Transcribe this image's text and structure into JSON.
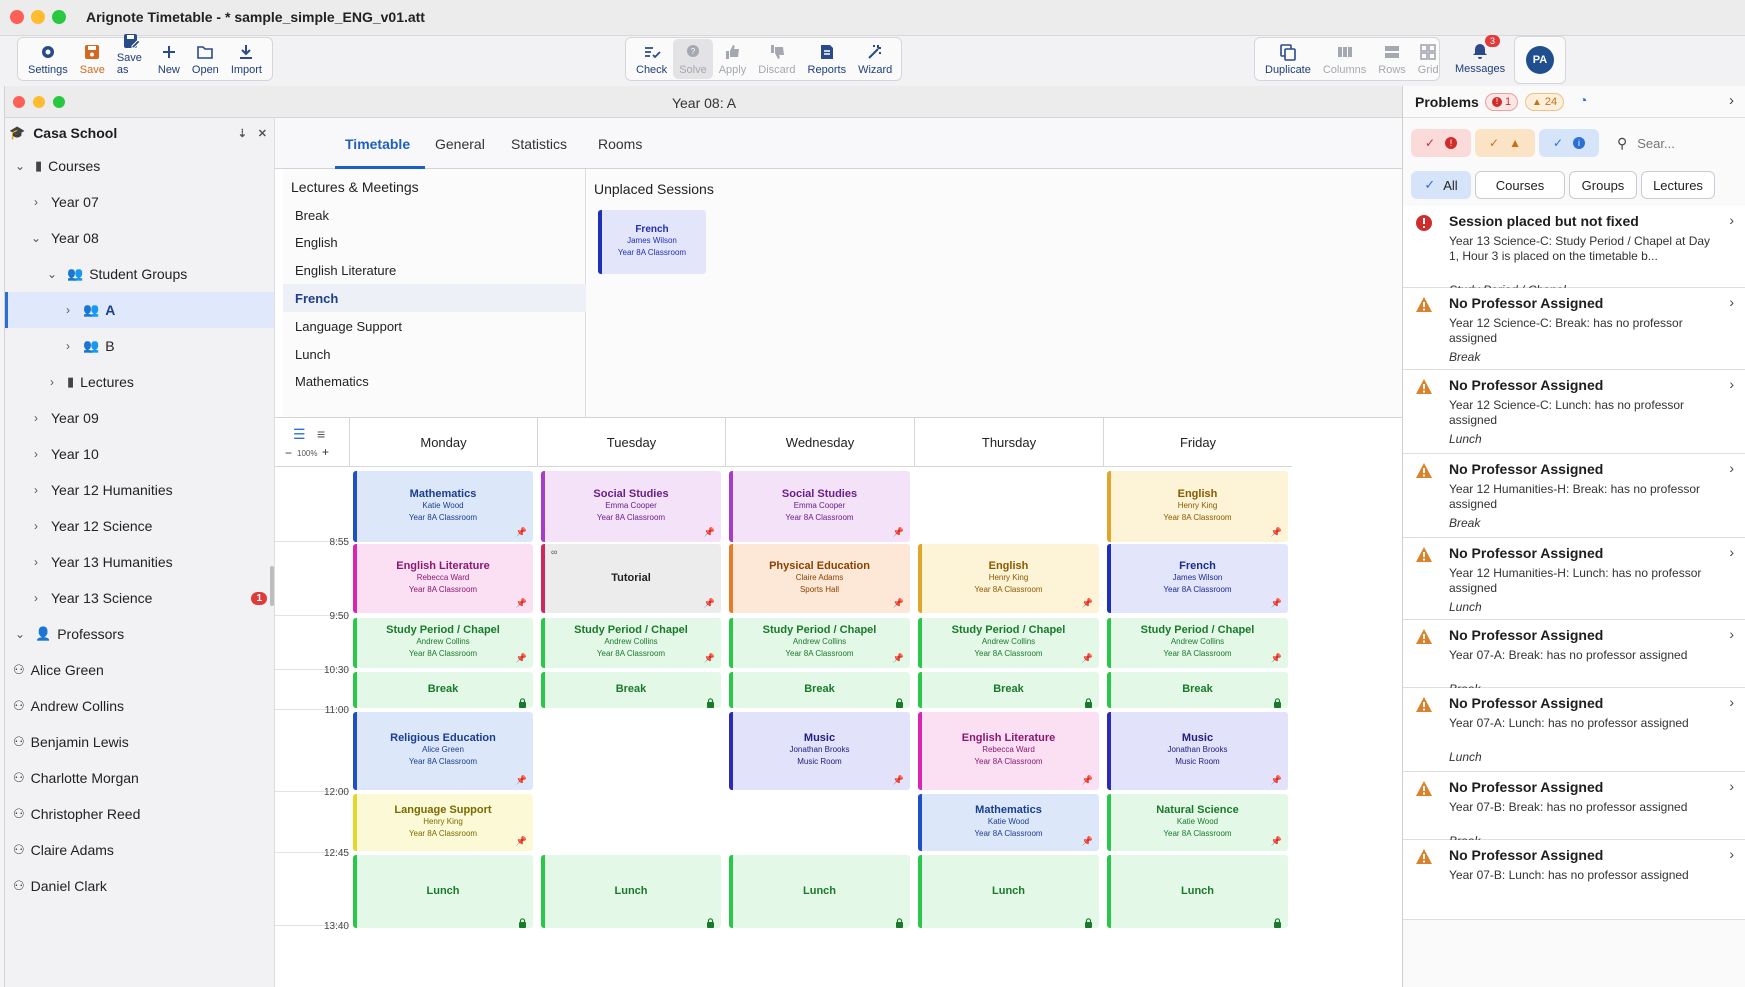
{
  "app": {
    "title": "Arignote Timetable - * sample_simple_ENG_v01.att",
    "window_title": "Year 08: A"
  },
  "toolbar": {
    "left": [
      {
        "label": "Settings",
        "icon": "gear-icon"
      },
      {
        "label": "Save",
        "icon": "save-icon"
      },
      {
        "label": "Save as",
        "icon": "save-as-icon"
      },
      {
        "label": "New",
        "icon": "plus-icon"
      },
      {
        "label": "Open",
        "icon": "folder-icon"
      },
      {
        "label": "Import",
        "icon": "download-icon"
      }
    ],
    "center": [
      {
        "label": "Check",
        "icon": "check-icon"
      },
      {
        "label": "Solve",
        "icon": "solve-icon"
      },
      {
        "label": "Apply",
        "icon": "thumbs-up-icon"
      },
      {
        "label": "Discard",
        "icon": "thumbs-down-icon"
      },
      {
        "label": "Reports",
        "icon": "reports-icon"
      },
      {
        "label": "Wizard",
        "icon": "wizard-icon"
      }
    ],
    "right": [
      {
        "label": "Duplicate",
        "icon": "duplicate-icon"
      },
      {
        "label": "Columns",
        "icon": "columns-icon"
      },
      {
        "label": "Rows",
        "icon": "rows-icon"
      },
      {
        "label": "Grid",
        "icon": "grid-icon"
      }
    ],
    "messages": {
      "label": "Messages",
      "count": "3"
    },
    "avatar": "PA"
  },
  "sidebar": {
    "school": "Casa School",
    "rows": [
      {
        "label": "Courses",
        "level": 0,
        "chev": "down",
        "icon": "book-icon"
      },
      {
        "label": "Year 07",
        "level": 1,
        "chev": "right"
      },
      {
        "label": "Year 08",
        "level": 1,
        "chev": "down"
      },
      {
        "label": "Student Groups",
        "level": 2,
        "chev": "down",
        "icon": "group-icon"
      },
      {
        "label": "A",
        "level": 3,
        "chev": "right",
        "icon": "group-icon",
        "selected": true
      },
      {
        "label": "B",
        "level": 3,
        "chev": "right",
        "icon": "group-icon"
      },
      {
        "label": "Lectures",
        "level": 2,
        "chev": "right",
        "icon": "book-icon"
      },
      {
        "label": "Year 09",
        "level": 1,
        "chev": "right"
      },
      {
        "label": "Year 10",
        "level": 1,
        "chev": "right"
      },
      {
        "label": "Year 12 Humanities",
        "level": 1,
        "chev": "right"
      },
      {
        "label": "Year 12 Science",
        "level": 1,
        "chev": "right"
      },
      {
        "label": "Year 13 Humanities",
        "level": 1,
        "chev": "right"
      },
      {
        "label": "Year 13 Science",
        "level": 1,
        "chev": "right",
        "badge": "1"
      },
      {
        "label": "Professors",
        "level": 0,
        "chev": "down",
        "icon": "person-icon"
      },
      {
        "label": "Alice Green",
        "level": 0,
        "icon": "person-outline-icon"
      },
      {
        "label": "Andrew Collins",
        "level": 0,
        "icon": "person-outline-icon"
      },
      {
        "label": "Benjamin Lewis",
        "level": 0,
        "icon": "person-outline-icon"
      },
      {
        "label": "Charlotte Morgan",
        "level": 0,
        "icon": "person-outline-icon"
      },
      {
        "label": "Christopher Reed",
        "level": 0,
        "icon": "person-outline-icon"
      },
      {
        "label": "Claire Adams",
        "level": 0,
        "icon": "person-outline-icon"
      },
      {
        "label": "Daniel Clark",
        "level": 0,
        "icon": "person-outline-icon"
      }
    ]
  },
  "tabs": [
    "Timetable",
    "General",
    "Statistics",
    "Rooms"
  ],
  "lectures": {
    "title": "Lectures & Meetings",
    "items": [
      "Break",
      "English",
      "English Literature",
      "French",
      "Language Support",
      "Lunch",
      "Mathematics"
    ],
    "selected": "French"
  },
  "unplaced": {
    "title": "Unplaced Sessions",
    "cards": [
      {
        "subject": "French",
        "prof": "James Wilson",
        "room": "Year 8A Classroom",
        "color": "#1f2fb8",
        "bg": "#e3e6fb"
      }
    ]
  },
  "grid": {
    "zoom": "100%",
    "days": [
      "Monday",
      "Tuesday",
      "Wednesday",
      "Thursday",
      "Friday"
    ],
    "times": [
      "8:55",
      "9:50",
      "10:30",
      "11:00",
      "12:00",
      "12:45",
      "13:40"
    ],
    "palette": {
      "math": {
        "bar": "#1f4fc4",
        "bg": "#dce8fa",
        "fg": "#1a3d8f"
      },
      "social": {
        "bar": "#a63cc7",
        "bg": "#f3e2f8",
        "fg": "#6a1f8a"
      },
      "english": {
        "bar": "#e0a52b",
        "bg": "#fdf3d6",
        "fg": "#8a5a00"
      },
      "englit": {
        "bar": "#d826b0",
        "bg": "#fbe0f3",
        "fg": "#8a1772"
      },
      "tutorial": {
        "bar": "#d0285a",
        "bg": "#ececec",
        "fg": "#222222"
      },
      "pe": {
        "bar": "#e67b2a",
        "bg": "#fde7d6",
        "fg": "#8a4200"
      },
      "french": {
        "bar": "#1f2fb8",
        "bg": "#e3e6fb",
        "fg": "#1a2a8f"
      },
      "study": {
        "bar": "#2bc74a",
        "bg": "#e3f8e6",
        "fg": "#1a7a2c"
      },
      "break": {
        "bar": "#2bc74a",
        "bg": "#e3f8e6",
        "fg": "#1a7a2c"
      },
      "religious": {
        "bar": "#1f4fc4",
        "bg": "#dce8fa",
        "fg": "#1a3d8f"
      },
      "music": {
        "bar": "#2d2ab5",
        "bg": "#e2e2fa",
        "fg": "#222080"
      },
      "lang": {
        "bar": "#e6d52b",
        "bg": "#fcf9d6",
        "fg": "#7a6a00"
      },
      "natsci": {
        "bar": "#2bc74a",
        "bg": "#e3f8e6",
        "fg": "#1a7a2c"
      },
      "lunch": {
        "bar": "#2bc74a",
        "bg": "#e3f8e6",
        "fg": "#1a7a2c"
      }
    },
    "cards": [
      {
        "day": 0,
        "row": 0,
        "subject": "Mathematics",
        "prof": "Katie Wood",
        "room": "Year 8A Classroom",
        "style": "math",
        "marker": "pin"
      },
      {
        "day": 1,
        "row": 0,
        "subject": "Social Studies",
        "prof": "Emma Cooper",
        "room": "Year 8A Classroom",
        "style": "social",
        "marker": "pin"
      },
      {
        "day": 2,
        "row": 0,
        "subject": "Social Studies",
        "prof": "Emma Cooper",
        "room": "Year 8A Classroom",
        "style": "social",
        "marker": "pin"
      },
      {
        "day": 4,
        "row": 0,
        "subject": "English",
        "prof": "Henry King",
        "room": "Year 8A Classroom",
        "style": "english",
        "marker": "pin"
      },
      {
        "day": 0,
        "row": 1,
        "subject": "English Literature",
        "prof": "Rebecca Ward",
        "room": "Year 8A Classroom",
        "style": "englit",
        "marker": "pin"
      },
      {
        "day": 1,
        "row": 1,
        "subject": "Tutorial",
        "prof": "",
        "room": "",
        "style": "tutorial",
        "marker": "pin",
        "linked": true
      },
      {
        "day": 2,
        "row": 1,
        "subject": "Physical Education",
        "prof": "Claire Adams",
        "room": "Sports Hall",
        "style": "pe",
        "marker": "pin"
      },
      {
        "day": 3,
        "row": 1,
        "subject": "English",
        "prof": "Henry King",
        "room": "Year 8A Classroom",
        "style": "english",
        "marker": "pin"
      },
      {
        "day": 4,
        "row": 1,
        "subject": "French",
        "prof": "James Wilson",
        "room": "Year 8A Classroom",
        "style": "french",
        "marker": "pin"
      },
      {
        "day": 0,
        "row": 2,
        "subject": "Study Period / Chapel",
        "prof": "Andrew Collins",
        "room": "Year 8A Classroom",
        "style": "study",
        "marker": "pin"
      },
      {
        "day": 1,
        "row": 2,
        "subject": "Study Period / Chapel",
        "prof": "Andrew Collins",
        "room": "Year 8A Classroom",
        "style": "study",
        "marker": "pin"
      },
      {
        "day": 2,
        "row": 2,
        "subject": "Study Period / Chapel",
        "prof": "Andrew Collins",
        "room": "Year 8A Classroom",
        "style": "study",
        "marker": "pin"
      },
      {
        "day": 3,
        "row": 2,
        "subject": "Study Period / Chapel",
        "prof": "Andrew Collins",
        "room": "Year 8A Classroom",
        "style": "study",
        "marker": "pin"
      },
      {
        "day": 4,
        "row": 2,
        "subject": "Study Period / Chapel",
        "prof": "Andrew Collins",
        "room": "Year 8A Classroom",
        "style": "study",
        "marker": "pin"
      },
      {
        "day": 0,
        "row": 3,
        "subject": "Break",
        "prof": "",
        "room": "",
        "style": "break",
        "marker": "lock"
      },
      {
        "day": 1,
        "row": 3,
        "subject": "Break",
        "prof": "",
        "room": "",
        "style": "break",
        "marker": "lock"
      },
      {
        "day": 2,
        "row": 3,
        "subject": "Break",
        "prof": "",
        "room": "",
        "style": "break",
        "marker": "lock"
      },
      {
        "day": 3,
        "row": 3,
        "subject": "Break",
        "prof": "",
        "room": "",
        "style": "break",
        "marker": "lock"
      },
      {
        "day": 4,
        "row": 3,
        "subject": "Break",
        "prof": "",
        "room": "",
        "style": "break",
        "marker": "lock"
      },
      {
        "day": 0,
        "row": 4,
        "subject": "Religious Education",
        "prof": "Alice Green",
        "room": "Year 8A Classroom",
        "style": "religious",
        "marker": "pin"
      },
      {
        "day": 2,
        "row": 4,
        "subject": "Music",
        "prof": "Jonathan Brooks",
        "room": "Music Room",
        "style": "music",
        "marker": "pin"
      },
      {
        "day": 3,
        "row": 4,
        "subject": "English Literature",
        "prof": "Rebecca Ward",
        "room": "Year 8A Classroom",
        "style": "englit",
        "marker": "pin"
      },
      {
        "day": 4,
        "row": 4,
        "subject": "Music",
        "prof": "Jonathan Brooks",
        "room": "Music Room",
        "style": "music",
        "marker": "pin"
      },
      {
        "day": 0,
        "row": 5,
        "subject": "Language Support",
        "prof": "Henry King",
        "room": "Year 8A Classroom",
        "style": "lang",
        "marker": "pin"
      },
      {
        "day": 3,
        "row": 5,
        "subject": "Mathematics",
        "prof": "Katie Wood",
        "room": "Year 8A Classroom",
        "style": "math",
        "marker": "pin"
      },
      {
        "day": 4,
        "row": 5,
        "subject": "Natural Science",
        "prof": "Katie Wood",
        "room": "Year 8A Classroom",
        "style": "natsci",
        "marker": "pin"
      },
      {
        "day": 0,
        "row": 6,
        "subject": "Lunch",
        "prof": "",
        "room": "",
        "style": "lunch",
        "marker": "lock"
      },
      {
        "day": 1,
        "row": 6,
        "subject": "Lunch",
        "prof": "",
        "room": "",
        "style": "lunch",
        "marker": "lock"
      },
      {
        "day": 2,
        "row": 6,
        "subject": "Lunch",
        "prof": "",
        "room": "",
        "style": "lunch",
        "marker": "lock"
      },
      {
        "day": 3,
        "row": 6,
        "subject": "Lunch",
        "prof": "",
        "room": "",
        "style": "lunch",
        "marker": "lock"
      },
      {
        "day": 4,
        "row": 6,
        "subject": "Lunch",
        "prof": "",
        "room": "",
        "style": "lunch",
        "marker": "lock"
      }
    ]
  },
  "problems": {
    "title": "Problems",
    "error_count": "1",
    "warning_count": "24",
    "search_placeholder": "Sear...",
    "chips": [
      "All",
      "Courses",
      "Groups",
      "Lectures"
    ],
    "items": [
      {
        "type": "error",
        "title": "Session placed but not fixed",
        "desc": "Year 13 Science-C: Study Period / Chapel at Day 1, Hour 3 is placed on the timetable b...",
        "tag": "Study Period / Chapel"
      },
      {
        "type": "warning",
        "title": "No Professor Assigned",
        "desc": "Year 12 Science-C: Break: has no professor assigned",
        "tag": "Break"
      },
      {
        "type": "warning",
        "title": "No Professor Assigned",
        "desc": "Year 12 Science-C: Lunch: has no professor assigned",
        "tag": "Lunch"
      },
      {
        "type": "warning",
        "title": "No Professor Assigned",
        "desc": "Year 12 Humanities-H: Break: has no professor assigned",
        "tag": "Break"
      },
      {
        "type": "warning",
        "title": "No Professor Assigned",
        "desc": "Year 12 Humanities-H: Lunch: has no professor assigned",
        "tag": "Lunch"
      },
      {
        "type": "warning",
        "title": "No Professor Assigned",
        "desc": "Year 07-A: Break: has no professor assigned",
        "tag": "Break"
      },
      {
        "type": "warning",
        "title": "No Professor Assigned",
        "desc": "Year 07-A: Lunch: has no professor assigned",
        "tag": "Lunch"
      },
      {
        "type": "warning",
        "title": "No Professor Assigned",
        "desc": "Year 07-B: Break: has no professor assigned",
        "tag": "Break"
      },
      {
        "type": "warning",
        "title": "No Professor Assigned",
        "desc": "Year 07-B: Lunch: has no professor assigned",
        "tag": ""
      }
    ]
  }
}
